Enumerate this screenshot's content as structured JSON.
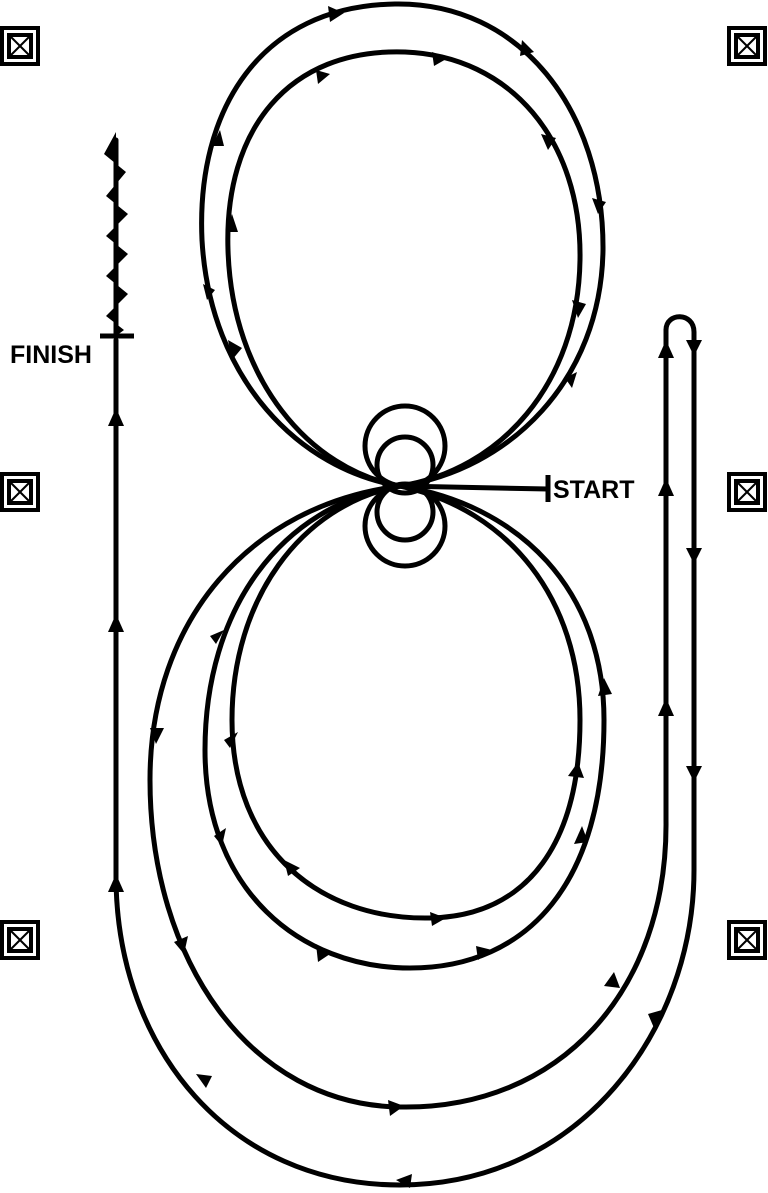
{
  "diagram": {
    "labels": {
      "finish": "FINISH",
      "start": "START"
    },
    "markers": [
      {
        "id": "top-left",
        "icon": "cone-marker-icon"
      },
      {
        "id": "top-right",
        "icon": "cone-marker-icon"
      },
      {
        "id": "middle-left",
        "icon": "cone-marker-icon"
      },
      {
        "id": "middle-right",
        "icon": "cone-marker-icon"
      },
      {
        "id": "bottom-left",
        "icon": "cone-marker-icon"
      },
      {
        "id": "bottom-right",
        "icon": "cone-marker-icon"
      }
    ],
    "colors": {
      "stroke": "#000000",
      "background": "#ffffff"
    }
  }
}
